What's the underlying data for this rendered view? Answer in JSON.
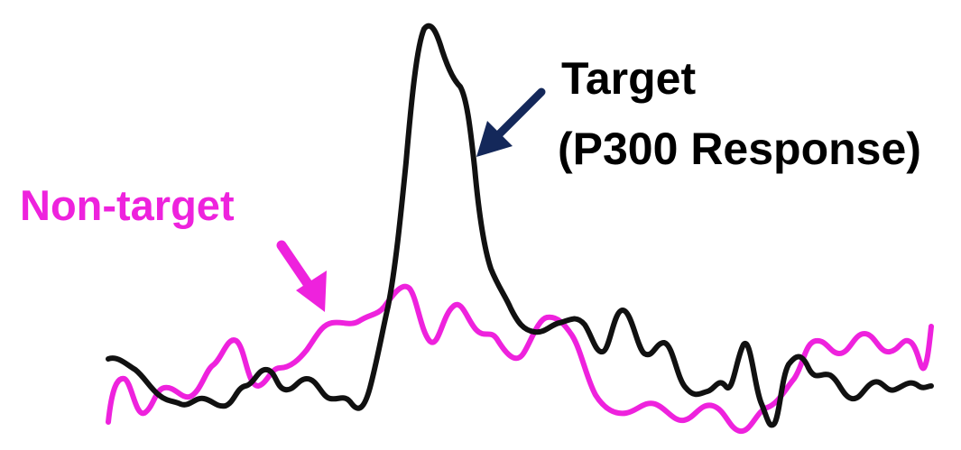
{
  "labels": {
    "target_line1": "Target",
    "target_line2": "(P300 Response)",
    "non_target": "Non-target"
  },
  "colors": {
    "target_trace": "#111111",
    "non_target_trace": "#ee22dd",
    "target_arrow": "#14285a",
    "non_target_arrow": "#ee22dd",
    "target_text": "#000000",
    "non_target_text": "#ee22dd"
  },
  "icons": {
    "target_arrow": "arrow-down-left-icon",
    "non_target_arrow": "arrow-down-right-icon"
  }
}
